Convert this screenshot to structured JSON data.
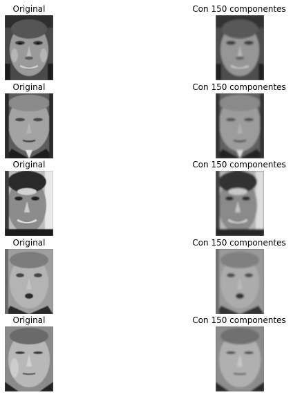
{
  "panels": [
    {
      "left_title": "Original",
      "right_title": "Con 150 componentes",
      "subject": "smiling-man-dark-hair"
    },
    {
      "left_title": "Original",
      "right_title": "Con 150 componentes",
      "subject": "serious-man-suit-tie"
    },
    {
      "left_title": "Original",
      "right_title": "Con 150 componentes",
      "subject": "smiling-man-dark-hair-bright-bg"
    },
    {
      "left_title": "Original",
      "right_title": "Con 150 componentes",
      "subject": "man-speaking-suit"
    },
    {
      "left_title": "Original",
      "right_title": "Con 150 componentes",
      "subject": "man-squinting-suit"
    }
  ],
  "colors": {
    "background": "#ffffff",
    "text": "#000000"
  }
}
